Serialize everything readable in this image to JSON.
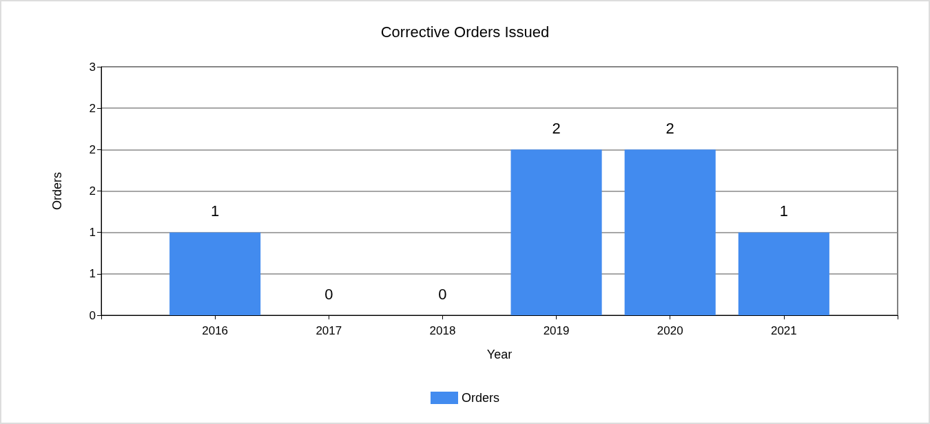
{
  "chart_data": {
    "type": "bar",
    "title": "Corrective Orders Issued",
    "xlabel": "Year",
    "ylabel": "Orders",
    "x": [
      2016,
      2017,
      2018,
      2019,
      2020,
      2021
    ],
    "xlim": [
      2015,
      2022
    ],
    "xticks": [
      {
        "value": 2015,
        "label": null
      },
      2016,
      2017,
      2018,
      2019,
      2020,
      2021,
      {
        "value": 2022,
        "label": null
      }
    ],
    "series": [
      {
        "name": "Orders",
        "color": "#428bef",
        "values": [
          1,
          0,
          0,
          2,
          2,
          1
        ]
      }
    ],
    "ylim": [
      0,
      3
    ],
    "yticks": [
      0,
      {
        "value": 0.5,
        "label": "1"
      },
      1,
      {
        "value": 1.5,
        "label": "2"
      },
      2,
      {
        "value": 2.5,
        "label": "2"
      },
      3
    ],
    "data_labels": true,
    "grid": "y",
    "legend": "bottom"
  }
}
